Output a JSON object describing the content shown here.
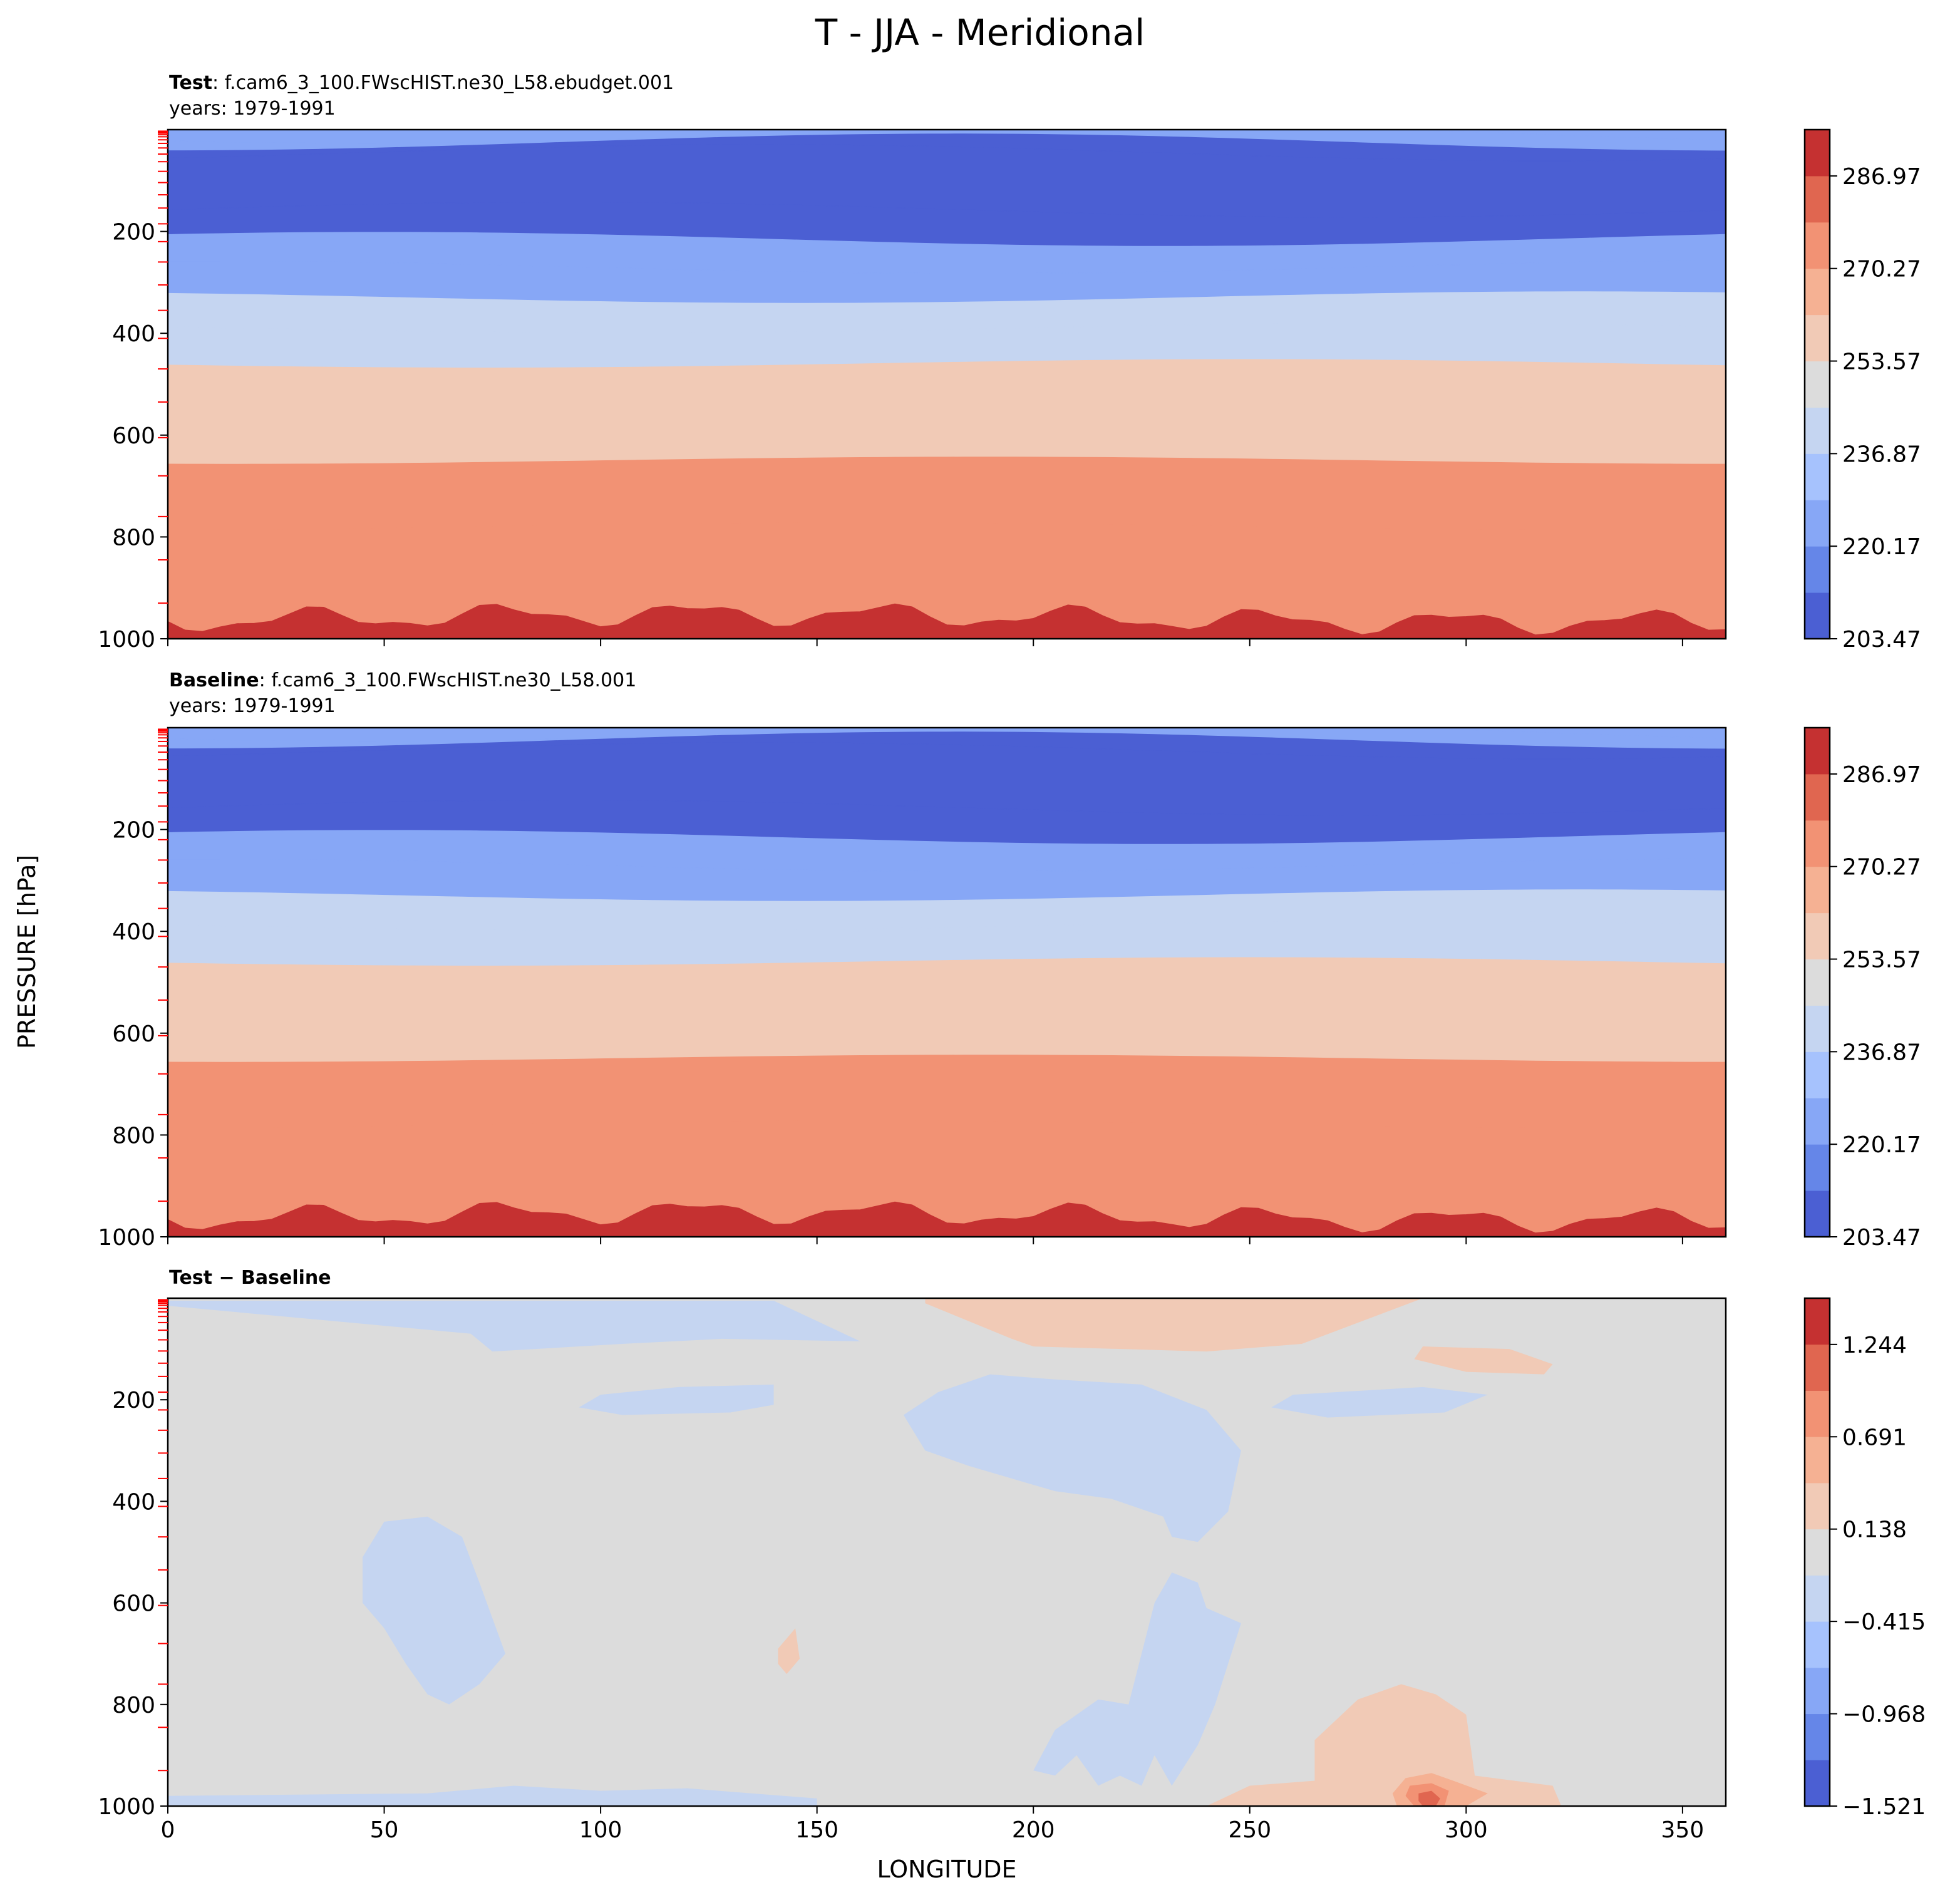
{
  "figure": {
    "suptitle": "T - JJA - Meridional",
    "ylabel": "PRESSURE [hPa]",
    "xlabel": "LONGITUDE",
    "panel_titles": [
      {
        "bold": "Test",
        "rest": ": f.cam6_3_100.FWscHIST.ne30_L58.ebudget.001",
        "years": "years: 1979-1991"
      },
      {
        "bold": "Baseline",
        "rest": ": f.cam6_3_100.FWscHIST.ne30_L58.001",
        "years": "years: 1979-1991"
      },
      {
        "bold": "Test − Baseline",
        "rest": "",
        "years": ""
      }
    ],
    "colors": {
      "coolwarm": [
        "#4b5fd3",
        "#6586e8",
        "#87a7f6",
        "#a6c2fd",
        "#c5d5f1",
        "#dcdcdc",
        "#f1cab6",
        "#f5b193",
        "#f29274",
        "#e06650",
        "#c53131"
      ],
      "diff_levels": [
        "#4b5fd3",
        "#6586e8",
        "#87a7f6",
        "#a6c2fd",
        "#c5d5f1",
        "#dcdcdc",
        "#f1cab6",
        "#f5b193",
        "#f29274",
        "#e06650",
        "#c53131"
      ],
      "level_tick_marks": "#ff0000"
    }
  },
  "chart_data": [
    {
      "type": "heatmap",
      "subtype": "filled contour (pressure-longitude cross-section)",
      "title": "Test: f.cam6_3_100.FWscHIST.ne30_L58.ebudget.001",
      "subtitle": "years: 1979-1991",
      "variable": "T",
      "xlim": [
        0,
        360
      ],
      "x_ticks": [
        0,
        50,
        100,
        150,
        200,
        250,
        300,
        350
      ],
      "y_ticks": [
        200,
        400,
        600,
        800,
        1000
      ],
      "ylim": [
        1000,
        0
      ],
      "y_inverted": true,
      "colorbar": {
        "ticks": [
          "286.97",
          "270.27",
          "253.57",
          "236.87",
          "220.17",
          "203.47"
        ],
        "levels": [
          203.47,
          211.82,
          220.17,
          228.52,
          236.87,
          245.22,
          253.57,
          261.92,
          270.27,
          278.62,
          286.97,
          295.32
        ]
      },
      "bands": [
        {
          "from_p": 0,
          "to_p": 10,
          "value": 228.5
        },
        {
          "from_p": 10,
          "to_p": 25,
          "value": 220.2
        },
        {
          "from_p": 25,
          "to_p": 45,
          "value": 211.8
        },
        {
          "from_p": 45,
          "to_p": 157,
          "value": 203.5
        },
        {
          "from_p": 157,
          "to_p": 215,
          "value": 211.8
        },
        {
          "from_p": 215,
          "to_p": 270,
          "value": 220.2
        },
        {
          "from_p": 270,
          "to_p": 330,
          "value": 228.5
        },
        {
          "from_p": 330,
          "to_p": 390,
          "value": 236.9
        },
        {
          "from_p": 390,
          "to_p": 460,
          "value": 245.2
        },
        {
          "from_p": 460,
          "to_p": 545,
          "value": 253.6
        },
        {
          "from_p": 545,
          "to_p": 650,
          "value": 261.9
        },
        {
          "from_p": 650,
          "to_p": 780,
          "value": 270.3
        },
        {
          "from_p": 780,
          "to_p": 960,
          "value": 278.6
        },
        {
          "from_p": 960,
          "to_p": 1000,
          "value": 287.0
        }
      ]
    },
    {
      "type": "heatmap",
      "subtype": "filled contour (pressure-longitude cross-section)",
      "title": "Baseline: f.cam6_3_100.FWscHIST.ne30_L58.001",
      "subtitle": "years: 1979-1991",
      "variable": "T",
      "xlim": [
        0,
        360
      ],
      "x_ticks": [
        0,
        50,
        100,
        150,
        200,
        250,
        300,
        350
      ],
      "y_ticks": [
        200,
        400,
        600,
        800,
        1000
      ],
      "ylim": [
        1000,
        0
      ],
      "y_inverted": true,
      "colorbar": {
        "ticks": [
          "286.97",
          "270.27",
          "253.57",
          "236.87",
          "220.17",
          "203.47"
        ],
        "levels": [
          203.47,
          211.82,
          220.17,
          228.52,
          236.87,
          245.22,
          253.57,
          261.92,
          270.27,
          278.62,
          286.97,
          295.32
        ]
      },
      "bands": [
        {
          "from_p": 0,
          "to_p": 10,
          "value": 228.5
        },
        {
          "from_p": 10,
          "to_p": 25,
          "value": 220.2
        },
        {
          "from_p": 25,
          "to_p": 45,
          "value": 211.8
        },
        {
          "from_p": 45,
          "to_p": 157,
          "value": 203.5
        },
        {
          "from_p": 157,
          "to_p": 215,
          "value": 211.8
        },
        {
          "from_p": 215,
          "to_p": 270,
          "value": 220.2
        },
        {
          "from_p": 270,
          "to_p": 330,
          "value": 228.5
        },
        {
          "from_p": 330,
          "to_p": 390,
          "value": 236.9
        },
        {
          "from_p": 390,
          "to_p": 460,
          "value": 245.2
        },
        {
          "from_p": 460,
          "to_p": 545,
          "value": 253.6
        },
        {
          "from_p": 545,
          "to_p": 650,
          "value": 261.9
        },
        {
          "from_p": 650,
          "to_p": 780,
          "value": 270.3
        },
        {
          "from_p": 780,
          "to_p": 960,
          "value": 278.6
        },
        {
          "from_p": 960,
          "to_p": 1000,
          "value": 287.0
        }
      ]
    },
    {
      "type": "heatmap",
      "subtype": "filled contour (difference)",
      "title": "Test − Baseline",
      "variable": "T",
      "xlim": [
        0,
        360
      ],
      "x_ticks": [
        0,
        50,
        100,
        150,
        200,
        250,
        300,
        350
      ],
      "y_ticks": [
        200,
        400,
        600,
        800,
        1000
      ],
      "ylim": [
        1000,
        0
      ],
      "y_inverted": true,
      "colorbar": {
        "ticks": [
          "1.244",
          "0.691",
          "0.138",
          "−0.415",
          "−0.968",
          "−1.521"
        ],
        "levels": [
          -1.521,
          -1.245,
          -0.968,
          -0.692,
          -0.415,
          -0.139,
          0.138,
          0.414,
          0.691,
          0.968,
          1.244,
          1.521
        ]
      },
      "background_value": 0,
      "regions": [
        {
          "value": -0.2,
          "points": [
            [
              0,
              5
            ],
            [
              140,
              5
            ],
            [
              160,
              85
            ],
            [
              128,
              80
            ],
            [
              105,
              90
            ],
            [
              85,
              100
            ],
            [
              75,
              105
            ],
            [
              70,
              70
            ],
            [
              0,
              15
            ]
          ]
        },
        {
          "value": -0.2,
          "points": [
            [
              118,
              175
            ],
            [
              140,
              170
            ],
            [
              140,
              210
            ],
            [
              130,
              225
            ],
            [
              105,
              230
            ],
            [
              95,
              215
            ],
            [
              100,
              190
            ]
          ]
        },
        {
          "value": 0.2,
          "points": [
            [
              175,
              0
            ],
            [
              290,
              0
            ],
            [
              262,
              90
            ],
            [
              240,
              105
            ],
            [
              200,
              95
            ],
            [
              195,
              80
            ],
            [
              175,
              10
            ]
          ]
        },
        {
          "value": 0.2,
          "points": [
            [
              290,
              95
            ],
            [
              310,
              100
            ],
            [
              320,
              130
            ],
            [
              318,
              150
            ],
            [
              300,
              145
            ],
            [
              288,
              120
            ]
          ]
        },
        {
          "value": -0.2,
          "points": [
            [
              260,
              190
            ],
            [
              290,
              175
            ],
            [
              305,
              190
            ],
            [
              295,
              225
            ],
            [
              268,
              235
            ],
            [
              255,
              215
            ]
          ]
        },
        {
          "value": -0.2,
          "points": [
            [
              178,
              185
            ],
            [
              190,
              150
            ],
            [
              205,
              160
            ],
            [
              225,
              170
            ],
            [
              240,
              220
            ],
            [
              248,
              300
            ],
            [
              245,
              420
            ],
            [
              238,
              480
            ],
            [
              232,
              470
            ],
            [
              230,
              430
            ],
            [
              218,
              395
            ],
            [
              205,
              380
            ],
            [
              185,
              330
            ],
            [
              175,
              300
            ],
            [
              170,
              230
            ]
          ]
        },
        {
          "value": -0.2,
          "points": [
            [
              45,
              510
            ],
            [
              50,
              440
            ],
            [
              60,
              430
            ],
            [
              68,
              470
            ],
            [
              72,
              560
            ],
            [
              78,
              700
            ],
            [
              72,
              760
            ],
            [
              65,
              800
            ],
            [
              60,
              780
            ],
            [
              55,
              720
            ],
            [
              50,
              650
            ],
            [
              45,
              600
            ]
          ]
        },
        {
          "value": -0.2,
          "points": [
            [
              232,
              540
            ],
            [
              238,
              560
            ],
            [
              240,
              610
            ],
            [
              248,
              640
            ],
            [
              245,
              720
            ],
            [
              242,
              800
            ],
            [
              238,
              880
            ],
            [
              232,
              960
            ],
            [
              228,
              900
            ],
            [
              225,
              960
            ],
            [
              220,
              940
            ],
            [
              215,
              960
            ],
            [
              210,
              900
            ],
            [
              205,
              940
            ],
            [
              200,
              930
            ],
            [
              205,
              850
            ],
            [
              215,
              790
            ],
            [
              222,
              800
            ],
            [
              225,
              700
            ],
            [
              228,
              600
            ]
          ]
        },
        {
          "value": -0.2,
          "points": [
            [
              0,
              980
            ],
            [
              60,
              975
            ],
            [
              80,
              960
            ],
            [
              100,
              970
            ],
            [
              120,
              965
            ],
            [
              150,
              985
            ],
            [
              150,
              1000
            ],
            [
              0,
              1000
            ]
          ]
        },
        {
          "value": 0.2,
          "points": [
            [
              265,
              870
            ],
            [
              275,
              790
            ],
            [
              285,
              760
            ],
            [
              293,
              780
            ],
            [
              300,
              820
            ],
            [
              302,
              940
            ],
            [
              320,
              960
            ],
            [
              322,
              1000
            ],
            [
              240,
              1000
            ],
            [
              250,
              960
            ],
            [
              265,
              950
            ]
          ]
        },
        {
          "value": 0.45,
          "points": [
            [
              286,
              945
            ],
            [
              292,
              935
            ],
            [
              297,
              950
            ],
            [
              305,
              975
            ],
            [
              300,
              1000
            ],
            [
              284,
              1000
            ],
            [
              283,
              975
            ]
          ]
        },
        {
          "value": 0.75,
          "points": [
            [
              287,
              960
            ],
            [
              292,
              955
            ],
            [
              296,
              970
            ],
            [
              295,
              1000
            ],
            [
              288,
              1000
            ],
            [
              286,
              980
            ]
          ]
        },
        {
          "value": 1.1,
          "points": [
            [
              289,
              975
            ],
            [
              292,
              970
            ],
            [
              294,
              985
            ],
            [
              293,
              1000
            ],
            [
              290,
              1000
            ],
            [
              289,
              990
            ]
          ]
        },
        {
          "value": 0.2,
          "points": [
            [
              141,
              690
            ],
            [
              145,
              650
            ],
            [
              146,
              710
            ],
            [
              143,
              740
            ],
            [
              141,
              720
            ]
          ]
        }
      ]
    }
  ]
}
